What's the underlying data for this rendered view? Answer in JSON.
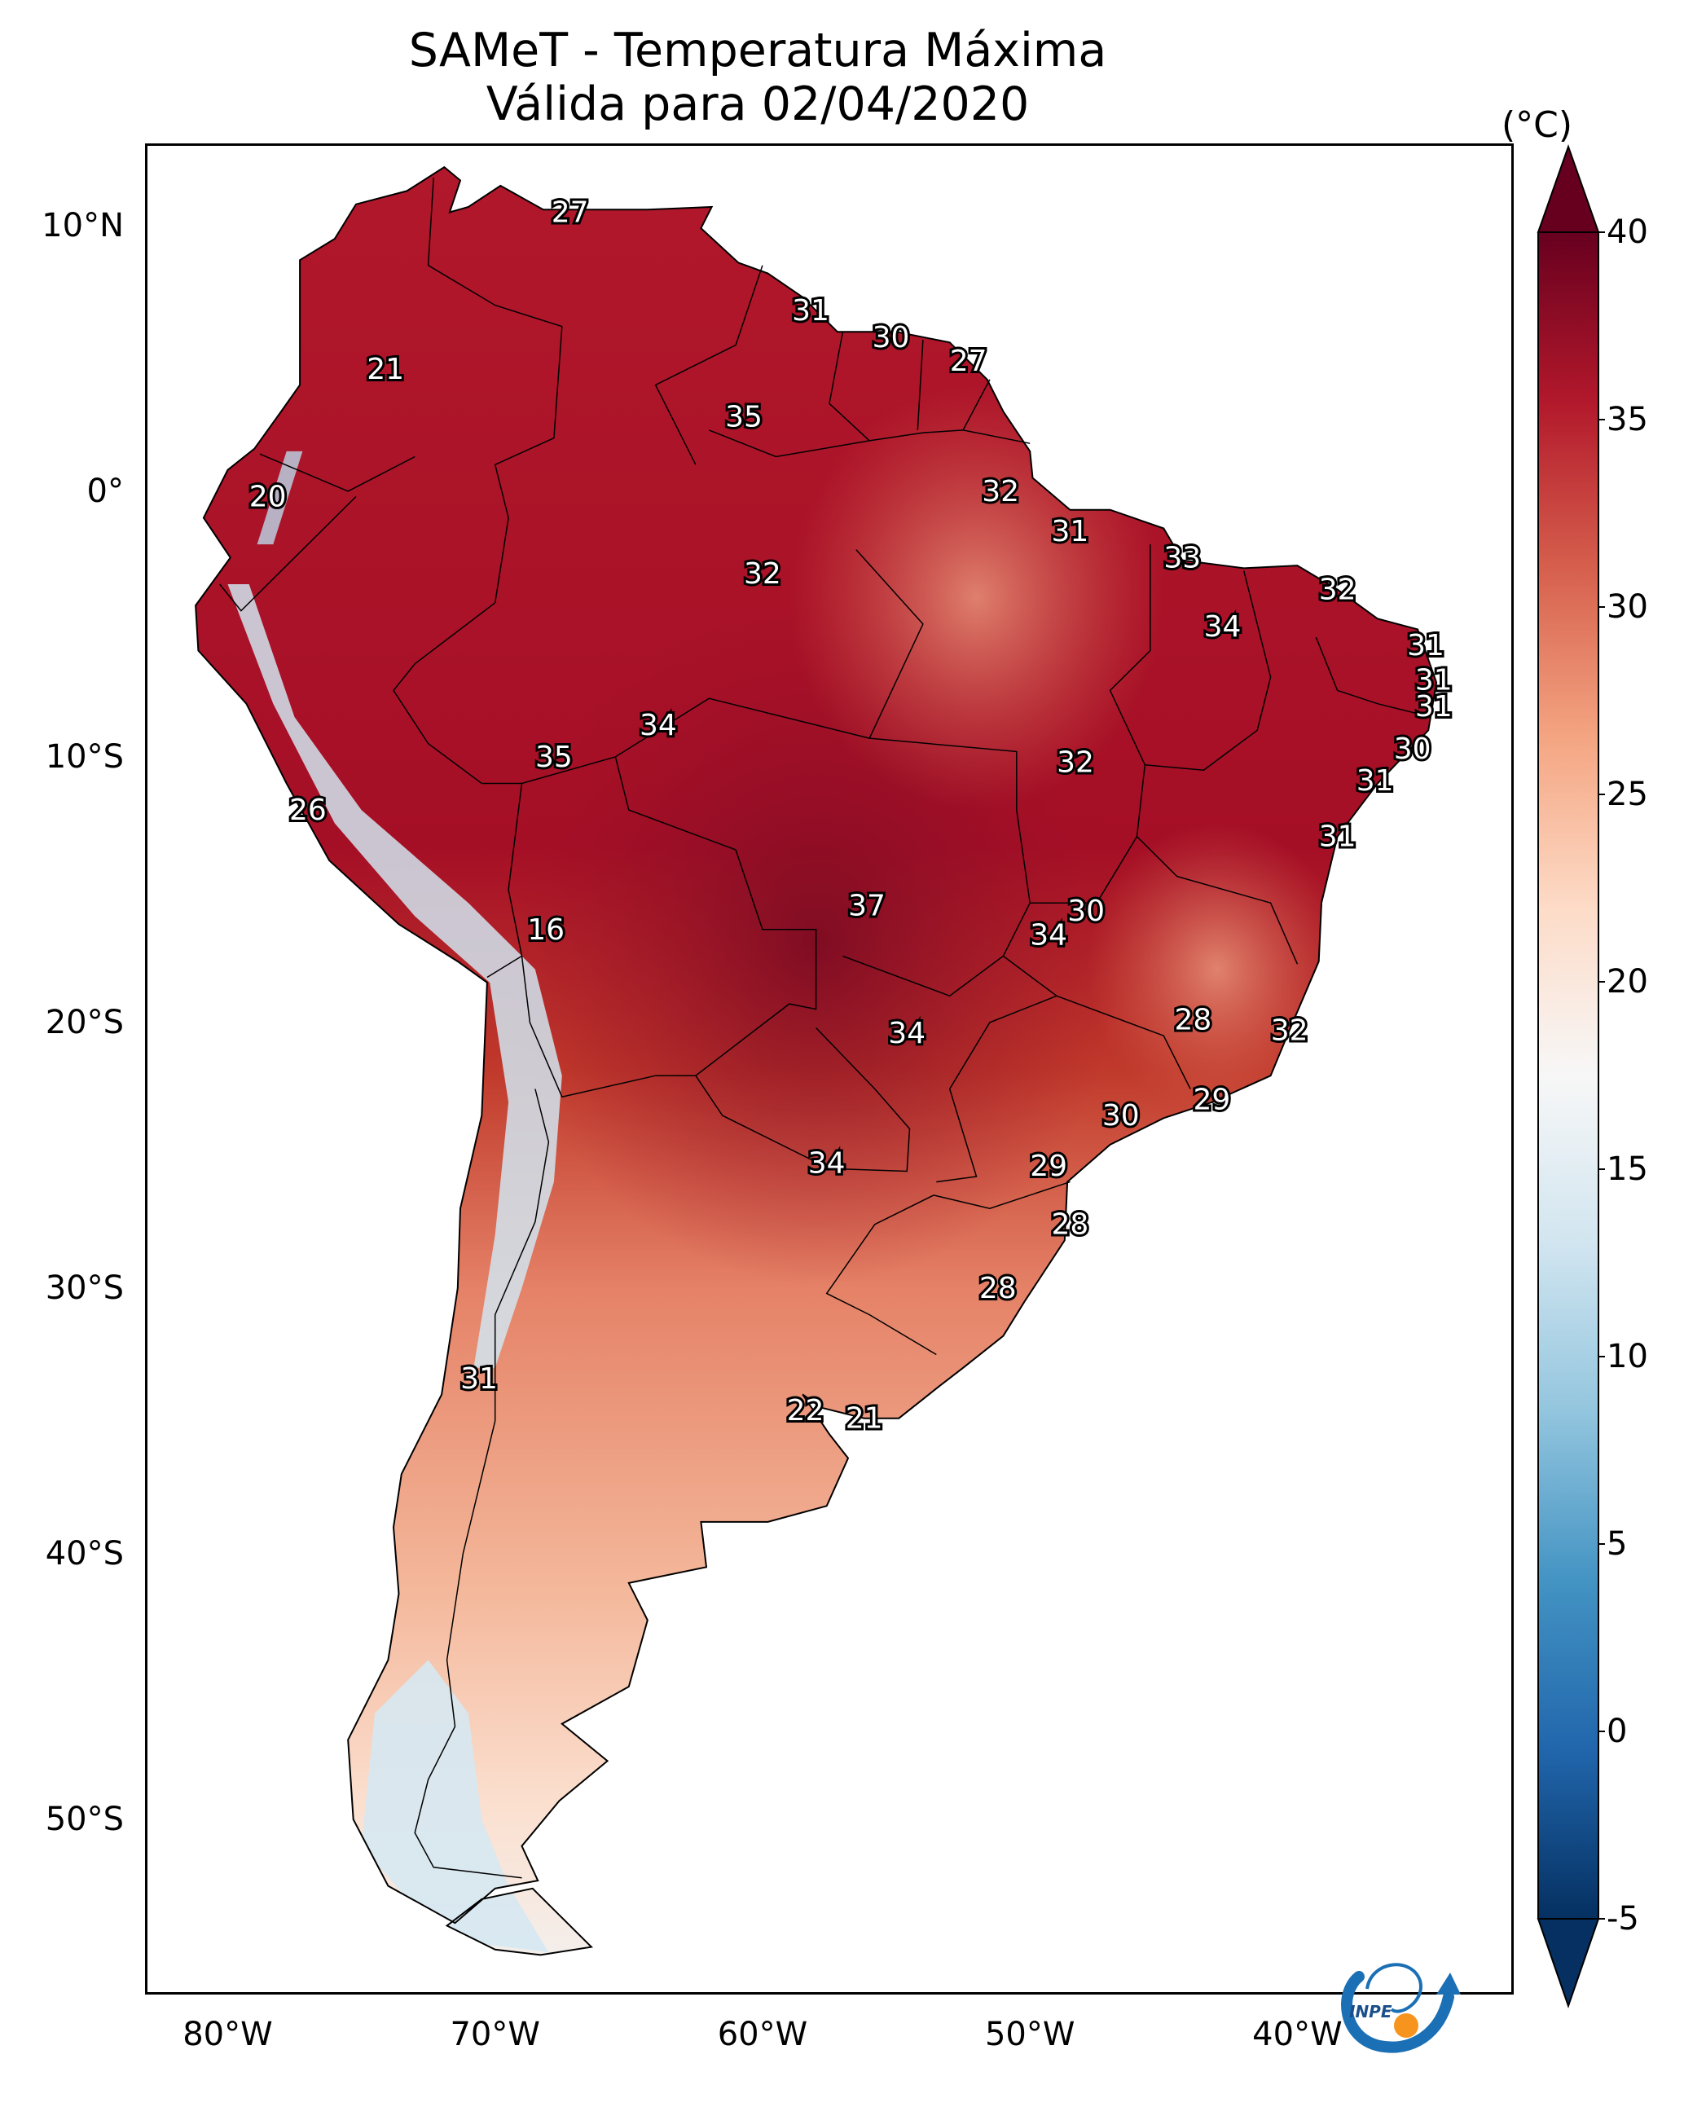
{
  "title": "SAMeT - Temperatura Máxima",
  "subtitle": "Válida para 02/04/2020",
  "colorbar": {
    "unit": "(°C)",
    "ticks": [
      "40",
      "35",
      "30",
      "25",
      "20",
      "15",
      "10",
      "5",
      "0",
      "-5"
    ],
    "range": [
      -5,
      40
    ],
    "colormap": "RdBu_r",
    "colors": {
      "high": "#67001f",
      "warm": "#b2182b",
      "mid_warm": "#d6604d",
      "light_warm": "#f4a582",
      "pale_warm": "#fddbc7",
      "neutral": "#f7f7f7",
      "pale_cool": "#d1e5f0",
      "light_cool": "#92c5de",
      "mid_cool": "#4393c3",
      "cool": "#2166ac",
      "low": "#053061"
    }
  },
  "axes": {
    "lat_labels": [
      "10°N",
      "0°",
      "10°S",
      "20°S",
      "30°S",
      "40°S",
      "50°S"
    ],
    "lon_labels": [
      "80°W",
      "70°W",
      "60°W",
      "50°W",
      "40°W"
    ]
  },
  "city_temperatures": [
    {
      "value": "27",
      "lon": -67.2,
      "lat": 10.5
    },
    {
      "value": "21",
      "lon": -74.1,
      "lat": 4.6
    },
    {
      "value": "20",
      "lon": -78.5,
      "lat": -0.2
    },
    {
      "value": "26",
      "lon": -77.0,
      "lat": -12.0
    },
    {
      "value": "16",
      "lon": -68.1,
      "lat": -16.5
    },
    {
      "value": "31",
      "lon": -70.6,
      "lat": -33.4
    },
    {
      "value": "31",
      "lon": -58.2,
      "lat": 6.8
    },
    {
      "value": "30",
      "lon": -55.2,
      "lat": 5.8
    },
    {
      "value": "27",
      "lon": -52.3,
      "lat": 4.9
    },
    {
      "value": "35",
      "lon": -60.7,
      "lat": 2.8
    },
    {
      "value": "32",
      "lon": -51.1,
      "lat": 0.0
    },
    {
      "value": "31",
      "lon": -48.5,
      "lat": -1.5
    },
    {
      "value": "33",
      "lon": -44.3,
      "lat": -2.5
    },
    {
      "value": "32",
      "lon": -38.5,
      "lat": -3.7
    },
    {
      "value": "34",
      "lon": -42.8,
      "lat": -5.1
    },
    {
      "value": "31",
      "lon": -35.2,
      "lat": -5.8
    },
    {
      "value": "31",
      "lon": -34.9,
      "lat": -7.1
    },
    {
      "value": "31",
      "lon": -34.9,
      "lat": -8.1
    },
    {
      "value": "30",
      "lon": -35.7,
      "lat": -9.7
    },
    {
      "value": "31",
      "lon": -37.1,
      "lat": -10.9
    },
    {
      "value": "31",
      "lon": -38.5,
      "lat": -13.0
    },
    {
      "value": "32",
      "lon": -48.3,
      "lat": -10.2
    },
    {
      "value": "32",
      "lon": -60.0,
      "lat": -3.1
    },
    {
      "value": "34",
      "lon": -63.9,
      "lat": -8.8
    },
    {
      "value": "35",
      "lon": -67.8,
      "lat": -10.0
    },
    {
      "value": "37",
      "lon": -56.1,
      "lat": -15.6
    },
    {
      "value": "30",
      "lon": -47.9,
      "lat": -15.8
    },
    {
      "value": "34",
      "lon": -49.3,
      "lat": -16.7
    },
    {
      "value": "28",
      "lon": -43.9,
      "lat": -19.9
    },
    {
      "value": "32",
      "lon": -40.3,
      "lat": -20.3
    },
    {
      "value": "34",
      "lon": -54.6,
      "lat": -20.4
    },
    {
      "value": "29",
      "lon": -43.2,
      "lat": -22.9
    },
    {
      "value": "30",
      "lon": -46.6,
      "lat": -23.5
    },
    {
      "value": "34",
      "lon": -57.6,
      "lat": -25.3
    },
    {
      "value": "29",
      "lon": -49.3,
      "lat": -25.4
    },
    {
      "value": "28",
      "lon": -48.5,
      "lat": -27.6
    },
    {
      "value": "28",
      "lon": -51.2,
      "lat": -30.0
    },
    {
      "value": "22",
      "lon": -58.4,
      "lat": -34.6
    },
    {
      "value": "21",
      "lon": -56.2,
      "lat": -34.9
    }
  ],
  "logo_text": "INPE"
}
